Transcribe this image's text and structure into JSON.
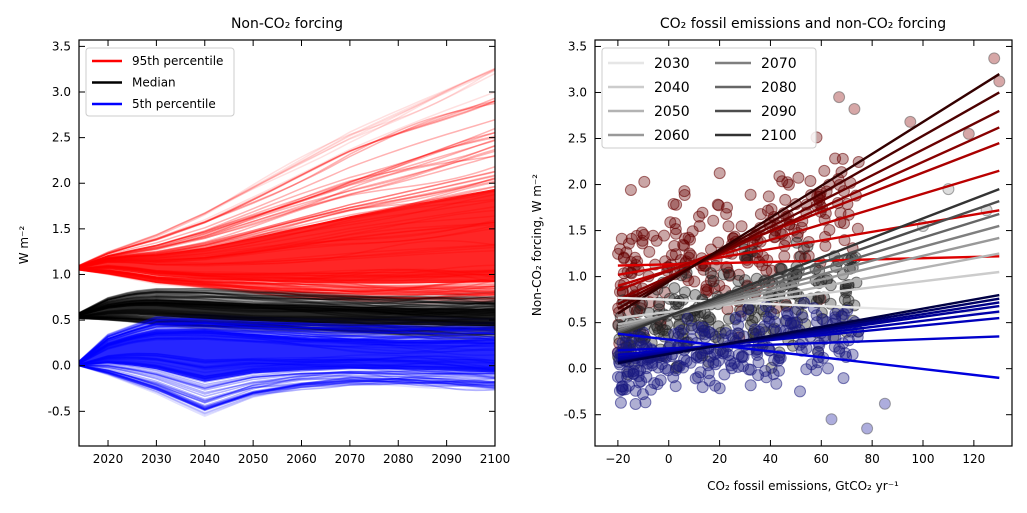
{
  "chart_data": [
    {
      "type": "line",
      "title": "Non-CO₂ forcing",
      "xlabel": "",
      "ylabel": "W m⁻²",
      "xlim": [
        2014,
        2100
      ],
      "ylim": [
        -0.88,
        3.57
      ],
      "x_ticks": [
        2020,
        2030,
        2040,
        2050,
        2060,
        2070,
        2080,
        2090,
        2100
      ],
      "y_ticks": [
        -0.5,
        0.0,
        0.5,
        1.0,
        1.5,
        2.0,
        2.5,
        3.0,
        3.5
      ],
      "legend_position": "upper-left",
      "ensemble_members_per_percentile": 120,
      "series": [
        {
          "name": "95th percentile",
          "color": "#ff0000",
          "x": [
            2014,
            2020,
            2025,
            2030,
            2040,
            2050,
            2060,
            2070,
            2080,
            2090,
            2100
          ],
          "values": [
            1.07,
            1.13,
            1.12,
            1.09,
            1.07,
            1.08,
            1.1,
            1.12,
            1.14,
            1.16,
            1.18
          ],
          "envelope_low": [
            1.05,
            1.0,
            0.95,
            0.9,
            0.85,
            0.8,
            0.75,
            0.72,
            0.7,
            0.7,
            0.7
          ],
          "envelope_high": [
            1.1,
            1.25,
            1.35,
            1.45,
            1.7,
            2.0,
            2.3,
            2.6,
            2.85,
            3.1,
            3.35
          ]
        },
        {
          "name": "Median",
          "color": "#000000",
          "x": [
            2014,
            2020,
            2025,
            2030,
            2040,
            2050,
            2060,
            2070,
            2080,
            2090,
            2100
          ],
          "values": [
            0.55,
            0.63,
            0.66,
            0.66,
            0.63,
            0.6,
            0.59,
            0.58,
            0.57,
            0.56,
            0.56
          ],
          "envelope_low": [
            0.52,
            0.5,
            0.48,
            0.45,
            0.42,
            0.4,
            0.38,
            0.36,
            0.35,
            0.34,
            0.33
          ],
          "envelope_high": [
            0.58,
            0.75,
            0.82,
            0.85,
            0.85,
            0.82,
            0.8,
            0.78,
            0.76,
            0.75,
            0.74
          ]
        },
        {
          "name": "5th percentile",
          "color": "#0000ff",
          "x": [
            2014,
            2020,
            2025,
            2030,
            2040,
            2050,
            2060,
            2070,
            2080,
            2090,
            2100
          ],
          "values": [
            0.02,
            0.18,
            0.25,
            0.28,
            0.28,
            0.24,
            0.2,
            0.18,
            0.16,
            0.15,
            0.14
          ],
          "envelope_low": [
            0.0,
            -0.1,
            -0.2,
            -0.3,
            -0.55,
            -0.35,
            -0.25,
            -0.2,
            -0.2,
            -0.22,
            -0.25
          ],
          "envelope_high": [
            0.05,
            0.35,
            0.45,
            0.55,
            0.58,
            0.55,
            0.53,
            0.52,
            0.52,
            0.53,
            0.54
          ]
        }
      ]
    },
    {
      "type": "scatter",
      "title": "CO₂ fossil emissions and non-CO₂ forcing",
      "xlabel": "CO₂ fossil emissions, GtCO₂ yr⁻¹",
      "ylabel": "Non-CO₂ forcing, W m⁻²",
      "xlim": [
        -29,
        135
      ],
      "ylim": [
        -0.84,
        3.57
      ],
      "x_ticks": [
        -20,
        0,
        20,
        40,
        60,
        80,
        100,
        120
      ],
      "y_ticks": [
        -0.5,
        0.0,
        0.5,
        1.0,
        1.5,
        2.0,
        2.5,
        3.0,
        3.5
      ],
      "legend_position": "upper-left",
      "legend_columns": 2,
      "legend": [
        "2030",
        "2040",
        "2050",
        "2060",
        "2070",
        "2080",
        "2090",
        "2100"
      ],
      "legend_colors": [
        "#e6e6e6",
        "#cccccc",
        "#b3b3b3",
        "#999999",
        "#7f7f7f",
        "#666666",
        "#4d4d4d",
        "#333333"
      ],
      "scatter_groups": [
        {
          "name": "95th percentile",
          "color": "#660000",
          "y_center": 1.25,
          "y_spread": 0.35,
          "slope": 0.011
        },
        {
          "name": "Median",
          "color": "#222222",
          "y_center": 0.6,
          "y_spread": 0.25,
          "slope": 0.006
        },
        {
          "name": "5th percentile",
          "color": "#1a1a80",
          "y_center": 0.15,
          "y_spread": 0.2,
          "slope": 0.004
        }
      ],
      "outlier_points": [
        {
          "x": 128,
          "y": 3.37
        },
        {
          "x": 130,
          "y": 3.12
        },
        {
          "x": 95,
          "y": 2.68
        },
        {
          "x": 73,
          "y": 2.82
        },
        {
          "x": 67,
          "y": 2.95
        },
        {
          "x": 118,
          "y": 2.55
        },
        {
          "x": 85,
          "y": -0.38
        },
        {
          "x": 64,
          "y": -0.55
        },
        {
          "x": 78,
          "y": -0.65
        },
        {
          "x": 125,
          "y": 1.72
        },
        {
          "x": 110,
          "y": 1.95
        },
        {
          "x": 100,
          "y": 1.55
        }
      ],
      "regression_lines": [
        {
          "year": "2030",
          "group": "95th percentile",
          "y_at_xmin": 1.12,
          "y_at_xmax": 1.22
        },
        {
          "year": "2040",
          "group": "95th percentile",
          "y_at_xmin": 1.02,
          "y_at_xmax": 1.72
        },
        {
          "year": "2050",
          "group": "95th percentile",
          "y_at_xmin": 0.9,
          "y_at_xmax": 2.15
        },
        {
          "year": "2060",
          "group": "95th percentile",
          "y_at_xmin": 0.85,
          "y_at_xmax": 2.45
        },
        {
          "year": "2070",
          "group": "95th percentile",
          "y_at_xmin": 0.75,
          "y_at_xmax": 2.62
        },
        {
          "year": "2080",
          "group": "95th percentile",
          "y_at_xmin": 0.7,
          "y_at_xmax": 2.8
        },
        {
          "year": "2090",
          "group": "95th percentile",
          "y_at_xmin": 0.65,
          "y_at_xmax": 3.0
        },
        {
          "year": "2100",
          "group": "95th percentile",
          "y_at_xmin": 0.6,
          "y_at_xmax": 3.2
        },
        {
          "year": "2030",
          "group": "Median",
          "y_at_xmin": 0.77,
          "y_at_xmax": 0.6
        },
        {
          "year": "2040",
          "group": "Median",
          "y_at_xmin": 0.55,
          "y_at_xmax": 1.05
        },
        {
          "year": "2050",
          "group": "Median",
          "y_at_xmin": 0.48,
          "y_at_xmax": 1.25
        },
        {
          "year": "2060",
          "group": "Median",
          "y_at_xmin": 0.45,
          "y_at_xmax": 1.42
        },
        {
          "year": "2070",
          "group": "Median",
          "y_at_xmin": 0.42,
          "y_at_xmax": 1.55
        },
        {
          "year": "2080",
          "group": "Median",
          "y_at_xmin": 0.4,
          "y_at_xmax": 1.68
        },
        {
          "year": "2090",
          "group": "Median",
          "y_at_xmin": 0.38,
          "y_at_xmax": 1.82
        },
        {
          "year": "2100",
          "group": "Median",
          "y_at_xmin": 0.36,
          "y_at_xmax": 1.95
        },
        {
          "year": "2030",
          "group": "5th percentile",
          "y_at_xmin": 0.38,
          "y_at_xmax": -0.1
        },
        {
          "year": "2040",
          "group": "5th percentile",
          "y_at_xmin": 0.2,
          "y_at_xmax": 0.35
        },
        {
          "year": "2050",
          "group": "5th percentile",
          "y_at_xmin": 0.15,
          "y_at_xmax": 0.55
        },
        {
          "year": "2060",
          "group": "5th percentile",
          "y_at_xmin": 0.12,
          "y_at_xmax": 0.62
        },
        {
          "year": "2070",
          "group": "5th percentile",
          "y_at_xmin": 0.1,
          "y_at_xmax": 0.68
        },
        {
          "year": "2080",
          "group": "5th percentile",
          "y_at_xmin": 0.08,
          "y_at_xmax": 0.72
        },
        {
          "year": "2090",
          "group": "5th percentile",
          "y_at_xmin": 0.07,
          "y_at_xmax": 0.76
        },
        {
          "year": "2100",
          "group": "5th percentile",
          "y_at_xmin": 0.06,
          "y_at_xmax": 0.8
        }
      ]
    }
  ]
}
